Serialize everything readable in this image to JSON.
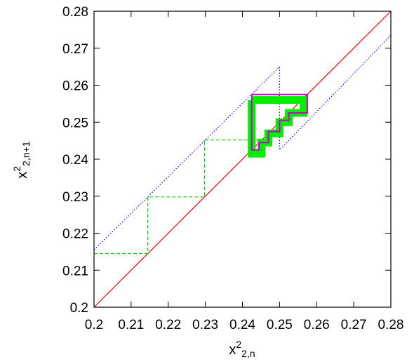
{
  "chart_data": {
    "type": "line",
    "title": "",
    "xlabel": {
      "base": "x",
      "sup": "2",
      "sub": "2,n"
    },
    "ylabel": {
      "base": "x",
      "sup": "2",
      "sub": "2,n+1"
    },
    "xlim": [
      0.2,
      0.28
    ],
    "ylim": [
      0.2,
      0.28
    ],
    "x_ticks": [
      "0.2",
      "0.21",
      "0.22",
      "0.23",
      "0.24",
      "0.25",
      "0.26",
      "0.27",
      "0.28"
    ],
    "y_ticks": [
      "0.2",
      "0.21",
      "0.22",
      "0.23",
      "0.24",
      "0.25",
      "0.26",
      "0.27",
      "0.28"
    ],
    "grid": false,
    "legend": "none",
    "series": [
      {
        "style": "solid",
        "color": "#ff0000",
        "x": [
          0.2,
          0.28
        ],
        "y": [
          0.2,
          0.28
        ]
      },
      {
        "style": "dotted",
        "color": "#0000ff",
        "x": [
          0.2,
          0.25,
          0.25,
          0.28
        ],
        "y": [
          0.2155,
          0.265,
          0.2425,
          0.2735
        ]
      },
      {
        "style": "dashed",
        "color": "#00cc00",
        "x": [
          0.2,
          0.2145,
          0.2145,
          0.2298,
          0.2298,
          0.2452,
          0.2452
        ],
        "y": [
          0.2145,
          0.2145,
          0.2298,
          0.2298,
          0.2452,
          0.2452,
          0.2425
        ]
      },
      {
        "style": "thick-solid",
        "color": "#00ee00",
        "x": [
          0.2425,
          0.2425,
          0.2452,
          0.2452,
          0.247,
          0.247,
          0.25,
          0.25,
          0.2525,
          0.2525,
          0.2565,
          0.2565,
          0.2425
        ],
        "y": [
          0.256,
          0.2415,
          0.2415,
          0.2445,
          0.2445,
          0.247,
          0.247,
          0.25,
          0.25,
          0.2525,
          0.2525,
          0.256,
          0.256
        ]
      },
      {
        "style": "solid",
        "color": "#cc00cc",
        "x": [
          0.2425,
          0.2425,
          0.2445,
          0.2445,
          0.247,
          0.247,
          0.25,
          0.25,
          0.2525,
          0.2525,
          0.2575,
          0.2575,
          0.2425
        ],
        "y": [
          0.2575,
          0.2425,
          0.2425,
          0.2445,
          0.2445,
          0.2475,
          0.2475,
          0.2505,
          0.2505,
          0.2525,
          0.2525,
          0.2575,
          0.2575
        ]
      }
    ]
  }
}
